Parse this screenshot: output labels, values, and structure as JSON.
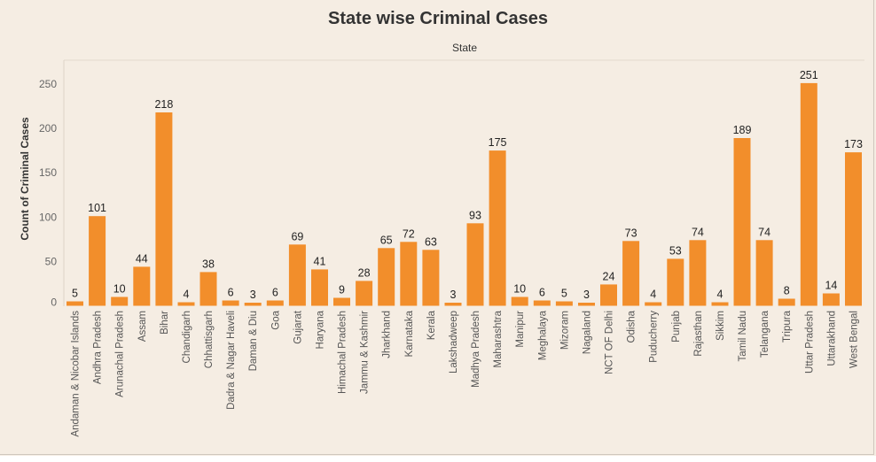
{
  "title": "State wise Criminal Cases",
  "chart_data": {
    "type": "bar",
    "title": "State wise Criminal Cases",
    "header": "State",
    "xlabel": "",
    "ylabel": "Count of Criminal Cases",
    "ylim": [
      0,
      270
    ],
    "yticks": [
      0,
      50,
      100,
      150,
      200,
      250
    ],
    "grid": false,
    "bar_color": "#f28e2b",
    "categories": [
      "Andaman & Nicobar Islands",
      "Andhra Pradesh",
      "Arunachal Pradesh",
      "Assam",
      "Bihar",
      "Chandigarh",
      "Chhattisgarh",
      "Dadra & Nagar Haveli",
      "Daman & Diu",
      "Goa",
      "Gujarat",
      "Haryana",
      "Himachal Pradesh",
      "Jammu & Kashmir",
      "Jharkhand",
      "Karnataka",
      "Kerala",
      "Lakshadweep",
      "Madhya Pradesh",
      "Maharashtra",
      "Manipur",
      "Meghalaya",
      "Mizoram",
      "Nagaland",
      "NCT OF Delhi",
      "Odisha",
      "Puducherry",
      "Punjab",
      "Rajasthan",
      "Sikkim",
      "Tamil Nadu",
      "Telangana",
      "Tripura",
      "Uttar Pradesh",
      "Uttarakhand",
      "West Bengal"
    ],
    "values": [
      5,
      101,
      10,
      44,
      218,
      4,
      38,
      6,
      3,
      6,
      69,
      41,
      9,
      28,
      65,
      72,
      63,
      3,
      93,
      175,
      10,
      6,
      5,
      3,
      24,
      73,
      4,
      53,
      74,
      4,
      189,
      74,
      8,
      251,
      14,
      173
    ]
  }
}
